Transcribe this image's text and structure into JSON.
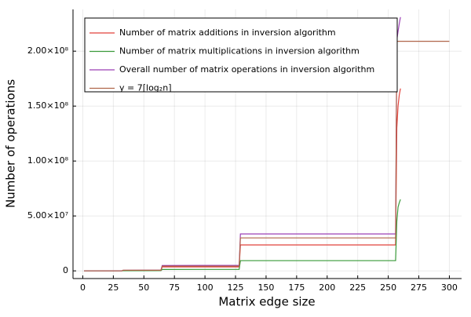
{
  "chart_data": {
    "type": "line",
    "xlabel": "Matrix edge size",
    "ylabel": "Number of operations",
    "xlim": [
      -8,
      310
    ],
    "ylim": [
      -7000000,
      238000000
    ],
    "xticks": [
      0,
      25,
      50,
      75,
      100,
      125,
      150,
      175,
      200,
      225,
      250,
      275,
      300
    ],
    "yticks": [
      0,
      {
        "value": 50000000,
        "label": "5.00×10⁷"
      },
      {
        "value": 100000000,
        "label": "1.00×10⁸"
      },
      {
        "value": 150000000,
        "label": "1.50×10⁸"
      },
      {
        "value": 200000000,
        "label": "2.00×10⁸"
      }
    ],
    "grid": true,
    "legend": "top-left",
    "series": [
      {
        "name": "Number of matrix additions in inversion algorithm",
        "color": "#e2413a",
        "x": [
          1,
          32,
          33,
          64,
          65,
          128,
          129,
          256,
          257,
          258,
          259,
          260
        ],
        "values": [
          0,
          30000,
          400000,
          500000,
          3600000,
          3600000,
          23600000,
          23600000,
          130000000,
          150000000,
          160000000,
          166000000
        ]
      },
      {
        "name": "Number of matrix multiplications in inversion algorithm",
        "color": "#3a9a3a",
        "x": [
          1,
          32,
          33,
          64,
          65,
          128,
          129,
          256,
          257,
          258,
          259,
          260
        ],
        "values": [
          0,
          10000,
          150000,
          200000,
          1300000,
          1400000,
          9300000,
          9300000,
          45000000,
          58000000,
          62000000,
          65000000
        ]
      },
      {
        "name": "Overall number of matrix operations in inversion algorithm",
        "color": "#9b3fb5",
        "x": [
          1,
          32,
          33,
          64,
          65,
          128,
          129,
          256,
          257,
          258,
          259,
          260
        ],
        "values": [
          0,
          40000,
          550000,
          700000,
          4900000,
          5000000,
          33600000,
          33600000,
          210000000,
          218000000,
          225000000,
          231000000
        ]
      },
      {
        "name": "y = 7⌈log₂n⌉",
        "color": "#b0654a",
        "x": [
          1,
          32,
          33,
          64,
          65,
          128,
          129,
          256,
          257,
          300
        ],
        "values": [
          0,
          0,
          600000,
          600000,
          4300000,
          4300000,
          30000000,
          30000000,
          209000000,
          209000000
        ]
      }
    ]
  }
}
